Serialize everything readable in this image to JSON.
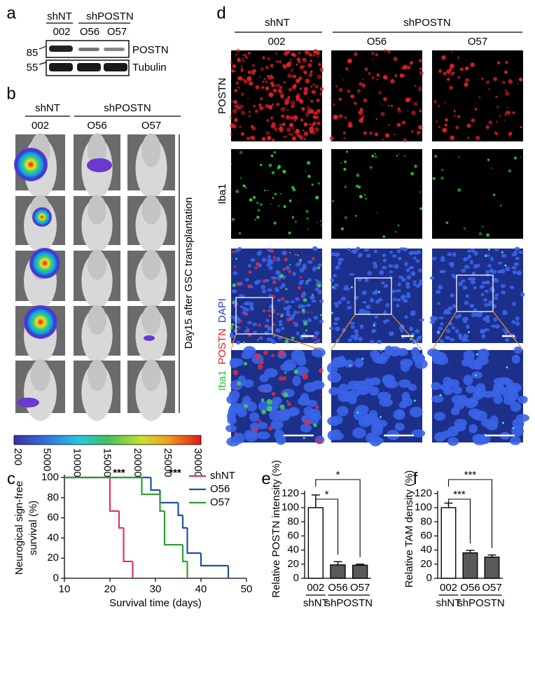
{
  "figure": {
    "panel_a": {
      "letter": "a",
      "groups": [
        "shNT",
        "shPOSTN"
      ],
      "lanes": [
        "002",
        "O56",
        "O57"
      ],
      "markers": [
        "85",
        "55"
      ],
      "bands": [
        "POSTN",
        "Tubulin"
      ]
    },
    "panel_b": {
      "letter": "b",
      "groups": [
        "shNT",
        "shPOSTN"
      ],
      "columns": [
        "002",
        "O56",
        "O57"
      ],
      "side_label": "Day15 after GSC transplantation",
      "colorbar": {
        "ticks": [
          200,
          5000,
          10000,
          15000,
          20000,
          25000,
          30000
        ]
      }
    },
    "panel_d": {
      "letter": "d",
      "groups": [
        "shNT",
        "shPOSTN"
      ],
      "columns": [
        "002",
        "O56",
        "O57"
      ],
      "row_labels": [
        "POSTN",
        "Iba1"
      ],
      "merge_label": [
        "Iba1",
        "POSTN",
        "DAPI"
      ]
    }
  },
  "chart_data": [
    {
      "letter": "c",
      "type": "step",
      "xlabel": "Survival time (days)",
      "ylabel": [
        "Neurogical sign-free",
        "survival (%)"
      ],
      "xlim": [
        10,
        50
      ],
      "xticks": [
        10,
        20,
        30,
        40,
        50
      ],
      "ylim": [
        0,
        100
      ],
      "yticks": [
        0,
        20,
        40,
        60,
        80,
        100
      ],
      "legend": "top-right",
      "annotations": [
        {
          "text": "***",
          "color": "#2ca02c"
        },
        {
          "text": "***",
          "color": "#1f4fa3"
        }
      ],
      "series": [
        {
          "name": "shNT",
          "color": "#e0306e",
          "x": [
            10,
            20,
            22,
            23,
            25
          ],
          "values": [
            100,
            66.7,
            50,
            16.7,
            0
          ]
        },
        {
          "name": "O56",
          "color": "#1f4fa3",
          "x": [
            10,
            29,
            31,
            35,
            36,
            37,
            40,
            46
          ],
          "values": [
            100,
            87.5,
            75,
            62.5,
            50,
            25,
            12.5,
            0
          ]
        },
        {
          "name": "O57",
          "color": "#2ca02c",
          "x": [
            10,
            27,
            31,
            32,
            36,
            37
          ],
          "values": [
            100,
            83.3,
            66.7,
            33.3,
            16.7,
            0
          ]
        }
      ]
    },
    {
      "letter": "e",
      "type": "bar",
      "ylabel": "Relative POSTN intensity (%)",
      "categories": [
        "002",
        "O56",
        "O57"
      ],
      "groups": [
        "shNT",
        "shPOSTN"
      ],
      "values": [
        100,
        19,
        18.5
      ],
      "errors": [
        18,
        4.5,
        1.5
      ],
      "colors": [
        "#ffffff",
        "#595959",
        "#595959"
      ],
      "ylim": [
        0,
        120
      ],
      "yticks": [
        0,
        20,
        40,
        60,
        80,
        100,
        120
      ],
      "significance": [
        "*",
        "*"
      ]
    },
    {
      "letter": "f",
      "type": "bar",
      "ylabel": "Relative TAM density (%)",
      "categories": [
        "002",
        "O56",
        "O57"
      ],
      "groups": [
        "shNT",
        "shPOSTN"
      ],
      "values": [
        100,
        36,
        30
      ],
      "errors": [
        6.5,
        3.5,
        3
      ],
      "colors": [
        "#ffffff",
        "#595959",
        "#595959"
      ],
      "ylim": [
        0,
        120
      ],
      "yticks": [
        0,
        20,
        40,
        60,
        80,
        100,
        120
      ],
      "significance": [
        "***",
        "***"
      ]
    }
  ]
}
